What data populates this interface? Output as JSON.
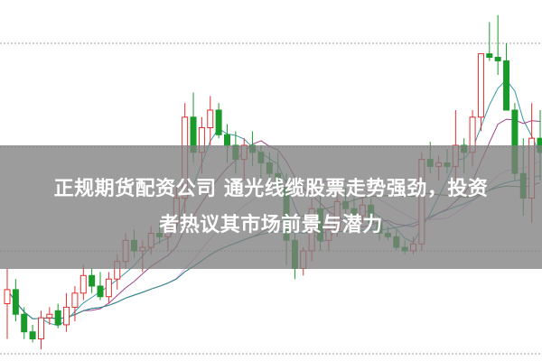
{
  "headline": {
    "line1": "正规期货配资公司 通光线缆股票走势强劲，投资",
    "line2": "者热议其市场前景与潜力"
  },
  "chart_data": {
    "type": "candlestick",
    "title": "",
    "xlabel": "",
    "ylabel": "",
    "grid": "horizontal dotted",
    "colors": {
      "up": "#e03030",
      "down": "#1a9a2a",
      "ma_lines": [
        "#3a9aa8",
        "#a0408a",
        "#e6a6e6",
        "#4a7a3a",
        "#2f8a98"
      ]
    },
    "ohlc": [
      [
        15,
        25,
        5,
        19
      ],
      [
        19,
        22,
        10,
        12
      ],
      [
        12,
        14,
        5,
        7
      ],
      [
        7,
        9,
        4,
        5
      ],
      [
        5,
        13,
        2,
        11
      ],
      [
        11,
        14,
        9,
        12
      ],
      [
        13,
        15,
        8,
        9
      ],
      [
        9,
        18,
        7,
        14
      ],
      [
        14,
        20,
        10,
        18
      ],
      [
        18,
        26,
        16,
        23
      ],
      [
        23,
        25,
        18,
        20
      ],
      [
        20,
        24,
        16,
        17
      ],
      [
        17,
        24,
        15,
        22
      ],
      [
        22,
        29,
        19,
        27
      ],
      [
        27,
        35,
        25,
        33
      ],
      [
        33,
        36,
        28,
        30
      ],
      [
        30,
        33,
        24,
        31
      ],
      [
        31,
        37,
        29,
        35
      ],
      [
        35,
        38,
        32,
        34
      ],
      [
        34,
        40,
        30,
        38
      ],
      [
        38,
        48,
        36,
        45
      ],
      [
        45,
        72,
        40,
        68
      ],
      [
        68,
        75,
        55,
        58
      ],
      [
        58,
        68,
        52,
        65
      ],
      [
        65,
        74,
        60,
        70
      ],
      [
        70,
        72,
        62,
        63
      ],
      [
        63,
        66,
        55,
        60
      ],
      [
        60,
        64,
        52,
        56
      ],
      [
        56,
        62,
        50,
        60
      ],
      [
        60,
        64,
        54,
        58
      ],
      [
        58,
        60,
        50,
        55
      ],
      [
        55,
        58,
        48,
        52
      ],
      [
        52,
        58,
        46,
        48
      ],
      [
        48,
        52,
        26,
        33
      ],
      [
        33,
        36,
        22,
        25
      ],
      [
        25,
        31,
        23,
        30
      ],
      [
        30,
        45,
        27,
        42
      ],
      [
        42,
        46,
        30,
        33
      ],
      [
        33,
        38,
        30,
        36
      ],
      [
        36,
        47,
        34,
        44
      ],
      [
        44,
        48,
        40,
        42
      ],
      [
        42,
        47,
        37,
        40
      ],
      [
        40,
        46,
        38,
        43
      ],
      [
        43,
        45,
        36,
        38
      ],
      [
        38,
        40,
        33,
        35
      ],
      [
        35,
        37,
        33,
        34
      ],
      [
        34,
        36,
        30,
        31
      ],
      [
        31,
        33,
        29,
        30
      ],
      [
        30,
        34,
        29,
        32
      ],
      [
        32,
        58,
        30,
        56
      ],
      [
        56,
        61,
        52,
        54
      ],
      [
        54,
        57,
        50,
        55
      ],
      [
        55,
        59,
        52,
        54
      ],
      [
        54,
        70,
        48,
        60
      ],
      [
        60,
        62,
        52,
        58
      ],
      [
        58,
        70,
        54,
        68
      ],
      [
        68,
        86,
        64,
        86
      ],
      [
        86,
        95,
        84,
        85
      ],
      [
        85,
        97,
        80,
        84
      ],
      [
        84,
        89,
        70,
        70
      ],
      [
        70,
        72,
        50,
        52
      ],
      [
        52,
        62,
        40,
        45
      ],
      [
        45,
        72,
        38,
        62
      ],
      [
        62,
        70,
        50,
        58
      ]
    ]
  }
}
